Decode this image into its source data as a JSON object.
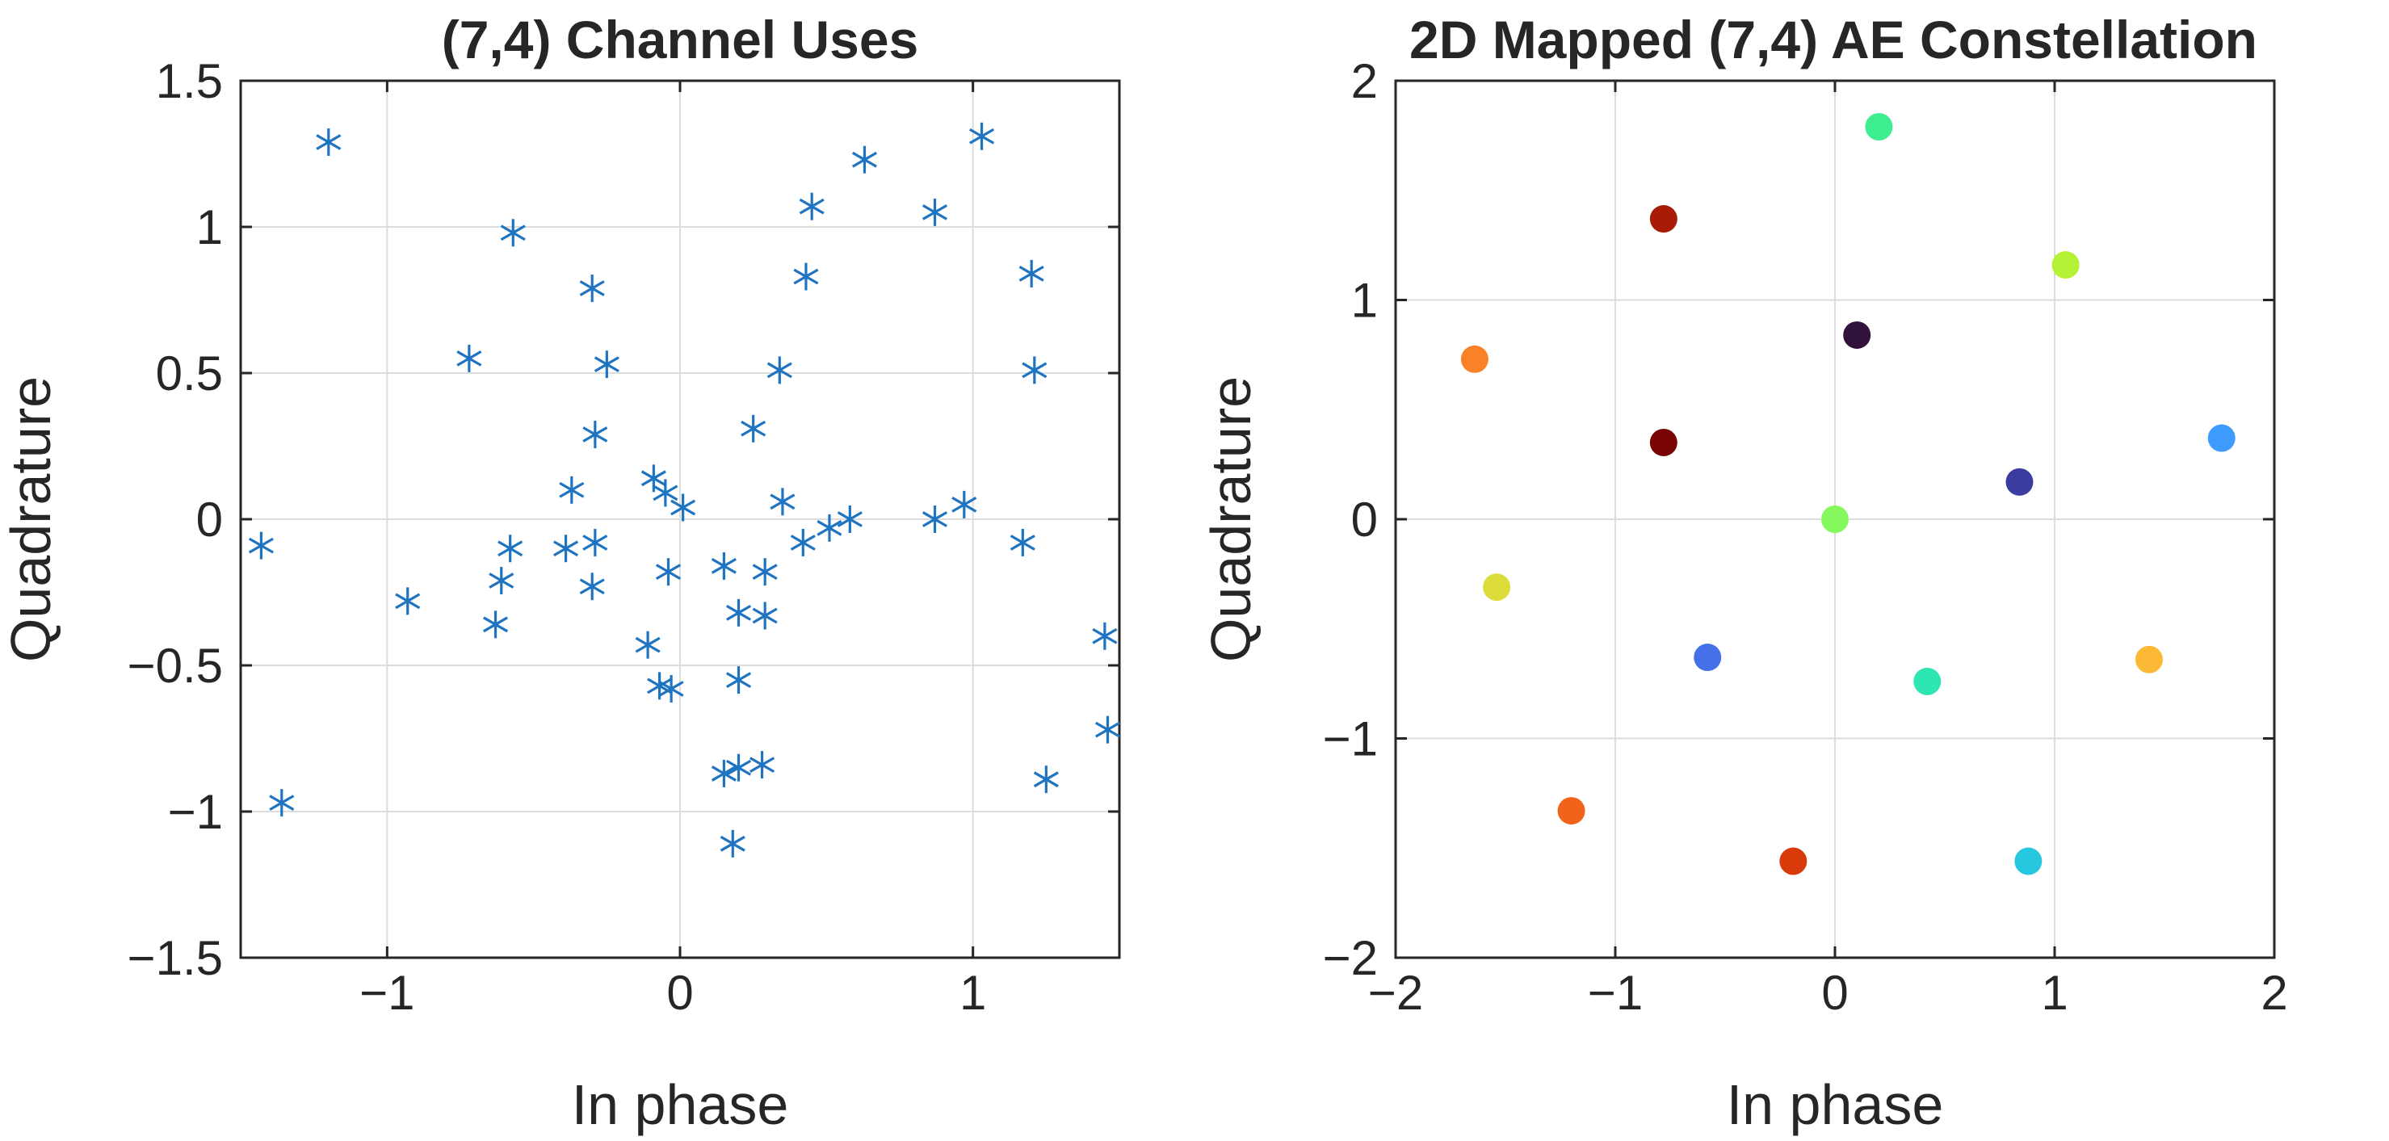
{
  "chart_data": [
    {
      "type": "scatter",
      "title": "(7,4) Channel Uses",
      "xlabel": "In phase",
      "ylabel": "Quadrature",
      "xlim": [
        -1.5,
        1.5
      ],
      "ylim": [
        -1.5,
        1.5
      ],
      "xticks": [
        -1,
        0,
        1
      ],
      "xtick_labels": [
        "−1",
        "0",
        "1"
      ],
      "yticks": [
        -1.5,
        -1,
        -0.5,
        0,
        0.5,
        1,
        1.5
      ],
      "ytick_labels": [
        "−1.5",
        "−1",
        "−0.5",
        "0",
        "0.5",
        "1",
        "1.5"
      ],
      "grid": true,
      "marker": "asterisk",
      "color": "#1f74c2",
      "series": [
        {
          "name": "channel uses",
          "points": [
            [
              -1.2,
              1.29
            ],
            [
              -0.57,
              0.98
            ],
            [
              -0.3,
              0.79
            ],
            [
              -0.72,
              0.55
            ],
            [
              -0.25,
              0.53
            ],
            [
              -0.29,
              0.29
            ],
            [
              -0.37,
              0.1
            ],
            [
              -0.58,
              -0.1
            ],
            [
              -0.39,
              -0.1
            ],
            [
              -0.29,
              -0.08
            ],
            [
              -0.61,
              -0.21
            ],
            [
              -0.3,
              -0.23
            ],
            [
              -0.63,
              -0.36
            ],
            [
              -0.93,
              -0.28
            ],
            [
              -1.43,
              -0.09
            ],
            [
              -1.36,
              -0.97
            ],
            [
              -0.09,
              0.14
            ],
            [
              -0.05,
              0.09
            ],
            [
              0.01,
              0.04
            ],
            [
              -0.04,
              -0.18
            ],
            [
              -0.11,
              -0.43
            ],
            [
              -0.07,
              -0.57
            ],
            [
              -0.03,
              -0.58
            ],
            [
              0.15,
              -0.16
            ],
            [
              0.29,
              -0.18
            ],
            [
              0.2,
              -0.32
            ],
            [
              0.29,
              -0.33
            ],
            [
              0.2,
              -0.55
            ],
            [
              0.15,
              -0.87
            ],
            [
              0.2,
              -0.85
            ],
            [
              0.28,
              -0.84
            ],
            [
              0.18,
              -1.11
            ],
            [
              0.63,
              1.23
            ],
            [
              1.03,
              1.31
            ],
            [
              0.45,
              1.07
            ],
            [
              0.87,
              1.05
            ],
            [
              0.43,
              0.83
            ],
            [
              1.2,
              0.84
            ],
            [
              0.34,
              0.51
            ],
            [
              1.21,
              0.51
            ],
            [
              0.25,
              0.31
            ],
            [
              0.35,
              0.06
            ],
            [
              0.42,
              -0.08
            ],
            [
              0.51,
              -0.03
            ],
            [
              0.58,
              0.0
            ],
            [
              0.87,
              0.0
            ],
            [
              0.97,
              0.05
            ],
            [
              1.17,
              -0.08
            ],
            [
              1.45,
              -0.4
            ],
            [
              1.46,
              -0.72
            ],
            [
              1.25,
              -0.89
            ]
          ]
        }
      ]
    },
    {
      "type": "scatter",
      "title": "2D Mapped (7,4) AE Constellation",
      "xlabel": "In phase",
      "ylabel": "Quadrature",
      "xlim": [
        -2,
        2
      ],
      "ylim": [
        -2,
        2
      ],
      "xticks": [
        -2,
        -1,
        0,
        1,
        2
      ],
      "xtick_labels": [
        "−2",
        "−1",
        "0",
        "1",
        "2"
      ],
      "yticks": [
        -2,
        -1,
        0,
        1,
        2
      ],
      "ytick_labels": [
        "−2",
        "−1",
        "0",
        "1",
        "2"
      ],
      "grid": true,
      "marker": "filled-circle",
      "points": [
        {
          "x": 0.2,
          "y": 1.79,
          "color": "#3ded8f"
        },
        {
          "x": -0.78,
          "y": 1.37,
          "color": "#a81b06"
        },
        {
          "x": 1.05,
          "y": 1.16,
          "color": "#b5f236"
        },
        {
          "x": 0.1,
          "y": 0.84,
          "color": "#30123b"
        },
        {
          "x": -1.64,
          "y": 0.73,
          "color": "#fa8226"
        },
        {
          "x": 1.76,
          "y": 0.37,
          "color": "#3e9bfe"
        },
        {
          "x": -0.78,
          "y": 0.35,
          "color": "#7a0403"
        },
        {
          "x": 0.84,
          "y": 0.17,
          "color": "#3a3ca0"
        },
        {
          "x": 0.0,
          "y": 0.0,
          "color": "#85f95e"
        },
        {
          "x": -1.54,
          "y": -0.31,
          "color": "#dcdd3a"
        },
        {
          "x": -0.58,
          "y": -0.63,
          "color": "#4670e8"
        },
        {
          "x": 0.42,
          "y": -0.74,
          "color": "#2ee6b2"
        },
        {
          "x": 1.43,
          "y": -0.64,
          "color": "#fbb935"
        },
        {
          "x": -1.2,
          "y": -1.33,
          "color": "#f1621a"
        },
        {
          "x": -0.19,
          "y": -1.56,
          "color": "#d83a0a"
        },
        {
          "x": 0.88,
          "y": -1.56,
          "color": "#27c7e0"
        }
      ]
    }
  ]
}
